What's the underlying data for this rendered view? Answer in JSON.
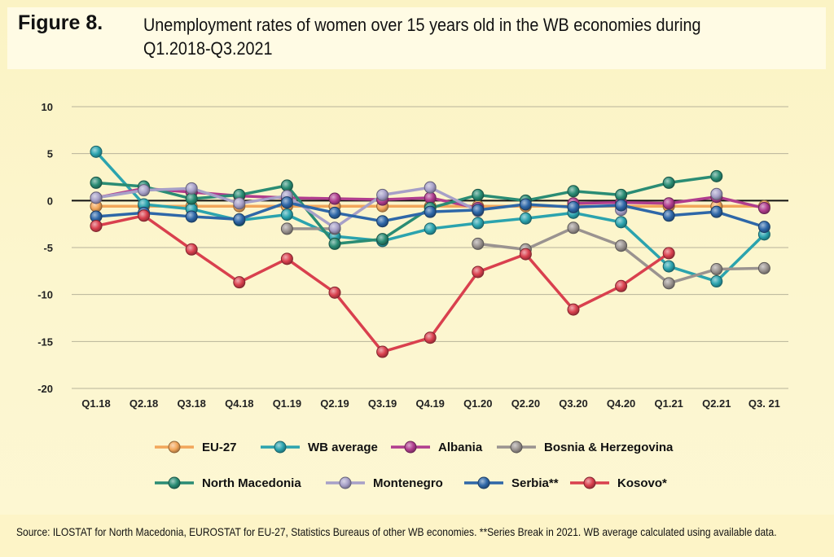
{
  "figure_label": "Figure 8.",
  "figure_title": "Unemployment rates of women over 15 years old in the WB economies during Q1.2018-Q3.2021",
  "source_note": "Source: ILOSTAT for North Macedonia, EUROSTAT for EU-27, Statistics Bureaus of other WB economies. **Series Break in 2021. WB average calculated using available data.",
  "chart_data": {
    "type": "line",
    "categories": [
      "Q1.18",
      "Q2.18",
      "Q3.18",
      "Q4.18",
      "Q1.19",
      "Q2.19",
      "Q3.19",
      "Q4.19",
      "Q1.20",
      "Q2.20",
      "Q3.20",
      "Q4.20",
      "Q1.21",
      "Q2.21",
      "Q3. 21"
    ],
    "ylim": [
      -20,
      10
    ],
    "yticks": [
      10,
      5,
      0,
      -5,
      -10,
      -15,
      -20
    ],
    "grid": true,
    "zero_line": true,
    "legend_position": "bottom",
    "series": [
      {
        "name": "EU-27",
        "color": "#f2a65a",
        "values": [
          -0.6,
          -0.6,
          -0.6,
          -0.6,
          -0.6,
          -0.6,
          -0.6,
          -0.6,
          -0.6,
          -0.6,
          -0.6,
          -0.6,
          -0.6,
          -0.6,
          -0.6
        ]
      },
      {
        "name": "WB average",
        "color": "#2ba3ae",
        "values": [
          5.2,
          -0.4,
          -0.9,
          -2.1,
          -1.5,
          -3.8,
          -4.3,
          -3.0,
          -2.4,
          -1.9,
          -1.3,
          -2.3,
          -7.0,
          -8.6,
          -3.6
        ]
      },
      {
        "name": "Albania",
        "color": "#b03d8e",
        "values": [
          0.3,
          1.3,
          0.9,
          0.5,
          0.3,
          0.2,
          0.1,
          0.3,
          -0.8,
          null,
          -0.3,
          -0.2,
          -0.3,
          0.4,
          -0.8
        ]
      },
      {
        "name": "Bosnia & Herzegovina",
        "color": "#9a9390",
        "values": [
          null,
          null,
          null,
          null,
          -3.0,
          -3.0,
          null,
          null,
          -4.6,
          -5.2,
          -2.9,
          -4.8,
          -8.8,
          -7.3,
          -7.2
        ]
      },
      {
        "name": "North Macedonia",
        "color": "#2a8c74",
        "values": [
          1.9,
          1.5,
          0.2,
          0.6,
          1.6,
          -4.6,
          -4.1,
          -0.8,
          0.6,
          0.0,
          1.0,
          0.6,
          1.9,
          2.6,
          null
        ]
      },
      {
        "name": "Montenegro",
        "color": "#a7a0c8",
        "values": [
          0.3,
          1.1,
          1.3,
          -0.3,
          0.5,
          -2.9,
          0.6,
          1.4,
          -1.1,
          null,
          null,
          -1.0,
          null,
          0.7,
          null
        ]
      },
      {
        "name": "Serbia**",
        "color": "#2e67a8",
        "values": [
          -1.7,
          -1.3,
          -1.7,
          -2.0,
          -0.2,
          -1.3,
          -2.2,
          -1.2,
          -1.0,
          -0.4,
          -0.7,
          -0.5,
          -1.6,
          -1.2,
          -2.8
        ]
      },
      {
        "name": "Kosovo*",
        "color": "#d9404e",
        "values": [
          -2.7,
          -1.6,
          -5.2,
          -8.7,
          -6.2,
          -9.8,
          -16.1,
          -14.6,
          -7.6,
          -5.7,
          -11.6,
          -9.1,
          -5.6,
          null,
          null
        ]
      }
    ]
  }
}
